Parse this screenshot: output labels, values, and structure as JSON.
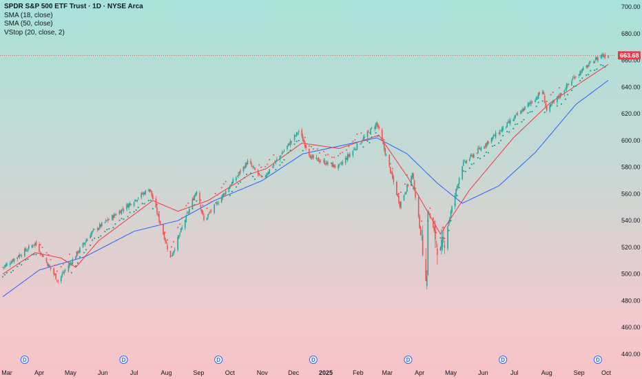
{
  "legend": {
    "title": "SPDR S&P 500 ETF Trust · 1D · NYSE Arca",
    "sma18": "SMA (18, close)",
    "sma50": "SMA (50, close)",
    "vstop": "VStop (20, close, 2)"
  },
  "chart_data": {
    "type": "candlestick",
    "ylim": [
      440,
      700
    ],
    "y_ticks": [
      "440.00",
      "460.00",
      "480.00",
      "500.00",
      "520.00",
      "540.00",
      "560.00",
      "580.00",
      "600.00",
      "620.00",
      "640.00",
      "660.00",
      "680.00",
      "700.00"
    ],
    "x_labels": [
      "Mar",
      "Apr",
      "May",
      "Jun",
      "Jul",
      "Aug",
      "Sep",
      "Oct",
      "Nov",
      "Dec",
      "2025",
      "Feb",
      "Mar",
      "Apr",
      "May",
      "Jun",
      "Jul",
      "Aug",
      "Sep",
      "Oct"
    ],
    "last_price": 663.68,
    "last_price_label": "663.68",
    "dividend_label": "D",
    "dividend_months": [
      "Mar 2024",
      "Jun 2024",
      "Sep 2024",
      "Dec 2024",
      "Mar 2025",
      "Jun 2025",
      "Sep 2025"
    ],
    "keypoints_close": [
      {
        "date": "2024-02-26",
        "value": 505
      },
      {
        "date": "2024-03-28",
        "value": 523
      },
      {
        "date": "2024-04-19",
        "value": 495
      },
      {
        "date": "2024-05-21",
        "value": 531
      },
      {
        "date": "2024-07-16",
        "value": 564
      },
      {
        "date": "2024-08-05",
        "value": 512
      },
      {
        "date": "2024-08-30",
        "value": 563
      },
      {
        "date": "2024-09-06",
        "value": 540
      },
      {
        "date": "2024-10-18",
        "value": 584
      },
      {
        "date": "2024-11-01",
        "value": 571
      },
      {
        "date": "2024-12-06",
        "value": 607
      },
      {
        "date": "2024-12-18",
        "value": 587
      },
      {
        "date": "2025-01-13",
        "value": 580
      },
      {
        "date": "2025-02-19",
        "value": 613
      },
      {
        "date": "2025-03-13",
        "value": 552
      },
      {
        "date": "2025-03-25",
        "value": 575
      },
      {
        "date": "2025-04-08",
        "value": 497
      },
      {
        "date": "2025-04-09",
        "value": 548
      },
      {
        "date": "2025-04-21",
        "value": 514
      },
      {
        "date": "2025-05-12",
        "value": 582
      },
      {
        "date": "2025-06-27",
        "value": 614
      },
      {
        "date": "2025-07-28",
        "value": 637
      },
      {
        "date": "2025-08-01",
        "value": 622
      },
      {
        "date": "2025-08-28",
        "value": 648
      },
      {
        "date": "2025-09-22",
        "value": 664
      },
      {
        "date": "2025-09-29",
        "value": 663
      }
    ],
    "sma18_points": [
      {
        "date": "2024-02-26",
        "value": 500
      },
      {
        "date": "2024-03-28",
        "value": 516
      },
      {
        "date": "2024-04-22",
        "value": 512
      },
      {
        "date": "2024-05-06",
        "value": 505
      },
      {
        "date": "2024-05-28",
        "value": 525
      },
      {
        "date": "2024-07-19",
        "value": 555
      },
      {
        "date": "2024-08-12",
        "value": 547
      },
      {
        "date": "2024-09-10",
        "value": 555
      },
      {
        "date": "2024-10-21",
        "value": 575
      },
      {
        "date": "2024-11-05",
        "value": 579
      },
      {
        "date": "2024-12-09",
        "value": 598
      },
      {
        "date": "2025-01-14",
        "value": 594
      },
      {
        "date": "2025-02-21",
        "value": 604
      },
      {
        "date": "2025-03-21",
        "value": 572
      },
      {
        "date": "2025-04-21",
        "value": 530
      },
      {
        "date": "2025-05-19",
        "value": 563
      },
      {
        "date": "2025-06-30",
        "value": 602
      },
      {
        "date": "2025-08-04",
        "value": 628
      },
      {
        "date": "2025-09-29",
        "value": 657
      }
    ],
    "sma50_points": [
      {
        "date": "2024-02-26",
        "value": 483
      },
      {
        "date": "2024-04-01",
        "value": 503
      },
      {
        "date": "2024-05-15",
        "value": 513
      },
      {
        "date": "2024-07-01",
        "value": 532
      },
      {
        "date": "2024-08-12",
        "value": 540
      },
      {
        "date": "2024-09-16",
        "value": 555
      },
      {
        "date": "2024-11-01",
        "value": 570
      },
      {
        "date": "2024-12-10",
        "value": 590
      },
      {
        "date": "2025-01-15",
        "value": 596
      },
      {
        "date": "2025-02-19",
        "value": 602
      },
      {
        "date": "2025-03-20",
        "value": 590
      },
      {
        "date": "2025-04-18",
        "value": 568
      },
      {
        "date": "2025-05-12",
        "value": 553
      },
      {
        "date": "2025-06-16",
        "value": 566
      },
      {
        "date": "2025-07-21",
        "value": 591
      },
      {
        "date": "2025-08-29",
        "value": 627
      },
      {
        "date": "2025-09-29",
        "value": 645
      }
    ],
    "colors": {
      "up": "#26a69a",
      "down": "#ef5350",
      "sma18": "#f23645",
      "sma50": "#2962ff",
      "vstop_up": "#089981",
      "vstop_down": "#ef5350",
      "price_tag": "#f23645"
    },
    "grid": false,
    "legend_position": "top-left"
  }
}
